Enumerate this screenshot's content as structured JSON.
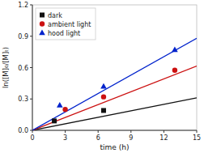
{
  "chart_data": {
    "type": "scatter",
    "xlabel": "time (h)",
    "ylabel": "ln([M]₀/[M]ₜ)",
    "xlim": [
      0,
      15
    ],
    "ylim": [
      0,
      1.2
    ],
    "xticks": [
      0,
      3,
      6,
      9,
      12,
      15
    ],
    "yticks": [
      {
        "value": 0.0,
        "label": "0.0"
      },
      0.3,
      0.6,
      0.9,
      1.2
    ],
    "legend": "upper left",
    "series": [
      {
        "name": "dark",
        "type": "scatter",
        "marker": "square",
        "color": "#111111",
        "x": [
          2.0,
          6.5
        ],
        "values": [
          0.09,
          0.19
        ]
      },
      {
        "name": "ambient light",
        "type": "scatter",
        "marker": "circle",
        "color": "#cc1111",
        "x": [
          3.0,
          6.5,
          13.0
        ],
        "values": [
          0.2,
          0.32,
          0.575
        ]
      },
      {
        "name": "hood light",
        "type": "scatter",
        "marker": "triangle",
        "color": "#0022cc",
        "x": [
          2.5,
          6.5,
          13.0
        ],
        "values": [
          0.24,
          0.42,
          0.77
        ]
      },
      {
        "type": "line",
        "color": "#111111",
        "x": [
          0,
          15
        ],
        "values": [
          0.0,
          0.31
        ]
      },
      {
        "type": "line",
        "color": "#cc1111",
        "x": [
          0,
          15
        ],
        "values": [
          0.0,
          0.615
        ]
      },
      {
        "type": "line",
        "color": "#0022cc",
        "x": [
          0,
          15
        ],
        "values": [
          0.0,
          0.88
        ]
      }
    ]
  }
}
